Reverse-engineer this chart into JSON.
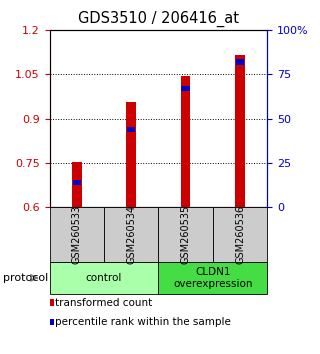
{
  "title": "GDS3510 / 206416_at",
  "samples": [
    "GSM260533",
    "GSM260534",
    "GSM260535",
    "GSM260536"
  ],
  "transformed_counts": [
    0.752,
    0.955,
    1.045,
    1.115
  ],
  "percentile_ranks": [
    0.14,
    0.44,
    0.67,
    0.82
  ],
  "bar_bottom": 0.6,
  "ylim_left": [
    0.6,
    1.2
  ],
  "ylim_right": [
    0.0,
    1.0
  ],
  "yticks_left": [
    0.6,
    0.75,
    0.9,
    1.05,
    1.2
  ],
  "ytick_labels_left": [
    "0.6",
    "0.75",
    "0.9",
    "1.05",
    "1.2"
  ],
  "yticks_right": [
    0.0,
    0.25,
    0.5,
    0.75,
    1.0
  ],
  "ytick_labels_right": [
    "0",
    "25",
    "50",
    "75",
    "100%"
  ],
  "gridlines_at": [
    0.75,
    0.9,
    1.05
  ],
  "bar_color": "#cc0000",
  "percentile_color": "#0000cc",
  "bar_width": 0.18,
  "groups": [
    {
      "label": "control",
      "samples": [
        0,
        1
      ],
      "color": "#aaffaa"
    },
    {
      "label": "CLDN1\noverexpression",
      "samples": [
        2,
        3
      ],
      "color": "#44dd44"
    }
  ],
  "legend_items": [
    {
      "color": "#cc0000",
      "label": "transformed count"
    },
    {
      "color": "#0000cc",
      "label": "percentile rank within the sample"
    }
  ],
  "protocol_label": "protocol",
  "bg_color": "#ffffff",
  "sample_box_color": "#cccccc",
  "left_tick_color": "#cc0000",
  "right_tick_color": "#0000cc"
}
